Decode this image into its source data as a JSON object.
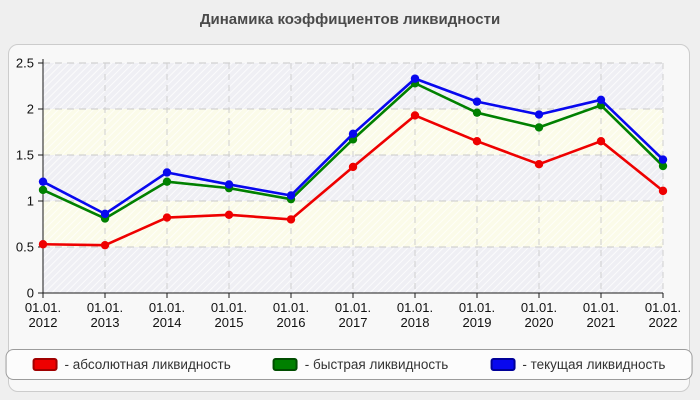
{
  "chart_data": {
    "type": "line",
    "title": "Динамика коэффициентов ликвидности",
    "x_tick_labels": [
      {
        "line1": "01.01.",
        "line2": "2012"
      },
      {
        "line1": "01.01.",
        "line2": "2013"
      },
      {
        "line1": "01.01.",
        "line2": "2014"
      },
      {
        "line1": "01.01.",
        "line2": "2015"
      },
      {
        "line1": "01.01.",
        "line2": "2016"
      },
      {
        "line1": "01.01.",
        "line2": "2017"
      },
      {
        "line1": "01.01.",
        "line2": "2018"
      },
      {
        "line1": "01.01.",
        "line2": "2019"
      },
      {
        "line1": "01.01.",
        "line2": "2020"
      },
      {
        "line1": "01.01.",
        "line2": "2021"
      },
      {
        "line1": "01.01.",
        "line2": "2022"
      }
    ],
    "y_ticks": [
      "0",
      "0.5",
      "1",
      "1.5",
      "2",
      "2.5"
    ],
    "ylim": [
      0,
      2.5
    ],
    "grid": "dashed, horizontal every 0.5 and vertical every year",
    "plot_background": "alternating horizontal bands with light diagonal hatch",
    "legend_position": "bottom",
    "series": [
      {
        "key": "absolute-liquidity",
        "name": "- абсолютная ликвидность",
        "color": "#ee0000",
        "swatch_border": "#a00000",
        "values": [
          0.53,
          0.52,
          0.82,
          0.85,
          0.8,
          1.37,
          1.93,
          1.65,
          1.4,
          1.65,
          1.11
        ]
      },
      {
        "key": "quick-liquidity",
        "name": "- быстрая ликвидность",
        "color": "#008000",
        "swatch_border": "#004d00",
        "values": [
          1.12,
          0.81,
          1.21,
          1.14,
          1.02,
          1.67,
          2.28,
          1.96,
          1.8,
          2.04,
          1.38
        ]
      },
      {
        "key": "current-liquidity",
        "name": "- текущая ликвидность",
        "color": "#0808ee",
        "swatch_border": "#000099",
        "values": [
          1.21,
          0.86,
          1.31,
          1.18,
          1.06,
          1.73,
          2.33,
          2.08,
          1.94,
          2.1,
          1.45
        ]
      }
    ]
  }
}
